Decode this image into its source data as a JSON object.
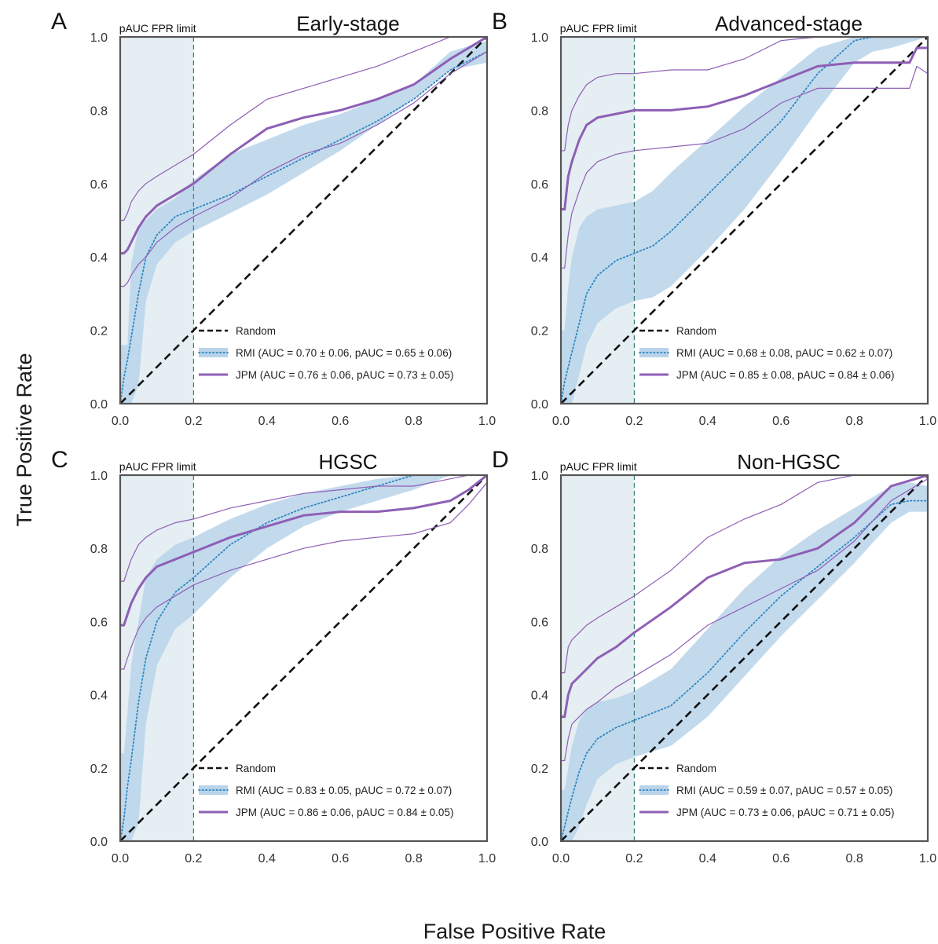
{
  "figure": {
    "xlabel": "False Positive Rate",
    "ylabel": "True Positive Rate",
    "pauc_label": "pAUC FPR limit",
    "legend_random": "Random",
    "colors": {
      "jpm": "#8e5fb5",
      "rmi": "#2e86c1",
      "rmi_band": "#b9d3ea",
      "pauc_region": "#e5eef2",
      "pauc_line": "#3f7f73",
      "random": "#111111",
      "frame": "#555555"
    }
  },
  "chart_data": [
    {
      "type": "line",
      "panel": "A",
      "title": "Early-stage",
      "xlim": [
        0,
        1
      ],
      "ylim": [
        0,
        1
      ],
      "xticks": [
        "0.0",
        "0.2",
        "0.4",
        "0.6",
        "0.8",
        "1.0"
      ],
      "yticks": [
        "0.0",
        "0.2",
        "0.4",
        "0.6",
        "0.8",
        "1.0"
      ],
      "pauc_fpr_limit": 0.2,
      "legend": {
        "rmi": "RMI (AUC = 0.70 ± 0.06, pAUC = 0.65 ± 0.06)",
        "jpm": "JPM (AUC = 0.76 ± 0.06, pAUC = 0.73 ± 0.05)"
      },
      "rmi": {
        "x": [
          0,
          0.01,
          0.02,
          0.03,
          0.05,
          0.07,
          0.1,
          0.15,
          0.2,
          0.3,
          0.4,
          0.5,
          0.6,
          0.7,
          0.8,
          0.9,
          1.0
        ],
        "y": [
          0.0,
          0.07,
          0.12,
          0.18,
          0.3,
          0.4,
          0.46,
          0.51,
          0.53,
          0.57,
          0.62,
          0.67,
          0.72,
          0.77,
          0.83,
          0.91,
          0.96
        ],
        "lower": [
          0.0,
          0.0,
          0.0,
          0.0,
          0.05,
          0.28,
          0.38,
          0.44,
          0.47,
          0.52,
          0.57,
          0.63,
          0.69,
          0.76,
          0.83,
          0.91,
          0.93
        ],
        "upper": [
          0.16,
          0.16,
          0.16,
          0.38,
          0.48,
          0.5,
          0.53,
          0.56,
          0.61,
          0.68,
          0.72,
          0.76,
          0.79,
          0.83,
          0.87,
          0.96,
          0.99
        ]
      },
      "jpm": {
        "x": [
          0,
          0.01,
          0.02,
          0.03,
          0.05,
          0.07,
          0.1,
          0.15,
          0.2,
          0.3,
          0.4,
          0.5,
          0.6,
          0.7,
          0.8,
          0.9,
          1.0
        ],
        "y": [
          0.41,
          0.41,
          0.42,
          0.44,
          0.48,
          0.51,
          0.54,
          0.57,
          0.6,
          0.68,
          0.75,
          0.78,
          0.8,
          0.83,
          0.87,
          0.94,
          1.0
        ],
        "lower": [
          0.32,
          0.32,
          0.33,
          0.35,
          0.38,
          0.4,
          0.44,
          0.48,
          0.51,
          0.56,
          0.63,
          0.68,
          0.71,
          0.76,
          0.82,
          0.9,
          0.96
        ],
        "upper": [
          0.5,
          0.5,
          0.52,
          0.55,
          0.58,
          0.6,
          0.62,
          0.65,
          0.68,
          0.76,
          0.83,
          0.86,
          0.89,
          0.92,
          0.96,
          1.0,
          1.0
        ]
      }
    },
    {
      "type": "line",
      "panel": "B",
      "title": "Advanced-stage",
      "xlim": [
        0,
        1
      ],
      "ylim": [
        0,
        1
      ],
      "xticks": [
        "0.0",
        "0.2",
        "0.4",
        "0.6",
        "0.8",
        "1.0"
      ],
      "yticks": [
        "0.0",
        "0.2",
        "0.4",
        "0.6",
        "0.8",
        "1.0"
      ],
      "pauc_fpr_limit": 0.2,
      "legend": {
        "rmi": "RMI (AUC = 0.68 ± 0.08, pAUC = 0.62 ± 0.07)",
        "jpm": "JPM (AUC = 0.85 ± 0.08, pAUC = 0.84 ± 0.06)"
      },
      "rmi": {
        "x": [
          0,
          0.01,
          0.02,
          0.03,
          0.05,
          0.07,
          0.1,
          0.15,
          0.2,
          0.25,
          0.3,
          0.4,
          0.5,
          0.6,
          0.7,
          0.8,
          0.85,
          0.9,
          1.0
        ],
        "y": [
          0.0,
          0.06,
          0.1,
          0.14,
          0.22,
          0.3,
          0.35,
          0.39,
          0.41,
          0.43,
          0.47,
          0.57,
          0.67,
          0.77,
          0.9,
          0.99,
          1.0,
          1.0,
          1.0
        ],
        "lower": [
          0.0,
          0.0,
          0.0,
          0.0,
          0.08,
          0.16,
          0.22,
          0.26,
          0.28,
          0.29,
          0.32,
          0.42,
          0.53,
          0.66,
          0.8,
          0.93,
          0.96,
          0.97,
          1.0
        ],
        "upper": [
          0.2,
          0.2,
          0.32,
          0.4,
          0.48,
          0.51,
          0.53,
          0.54,
          0.55,
          0.58,
          0.63,
          0.72,
          0.81,
          0.89,
          0.97,
          1.0,
          1.0,
          1.0,
          1.0
        ]
      },
      "jpm": {
        "x": [
          0,
          0.01,
          0.02,
          0.03,
          0.05,
          0.07,
          0.1,
          0.15,
          0.2,
          0.3,
          0.4,
          0.5,
          0.6,
          0.7,
          0.8,
          0.9,
          0.95,
          0.97,
          1.0
        ],
        "y": [
          0.53,
          0.53,
          0.62,
          0.66,
          0.72,
          0.76,
          0.78,
          0.79,
          0.8,
          0.8,
          0.81,
          0.84,
          0.88,
          0.92,
          0.93,
          0.93,
          0.93,
          0.97,
          0.97
        ],
        "lower": [
          0.37,
          0.37,
          0.46,
          0.52,
          0.58,
          0.63,
          0.66,
          0.68,
          0.69,
          0.7,
          0.71,
          0.75,
          0.82,
          0.86,
          0.86,
          0.86,
          0.86,
          0.92,
          0.9
        ],
        "upper": [
          0.69,
          0.69,
          0.76,
          0.8,
          0.84,
          0.87,
          0.89,
          0.9,
          0.9,
          0.91,
          0.91,
          0.94,
          0.99,
          1.0,
          1.0,
          1.0,
          1.0,
          1.0,
          1.0
        ]
      }
    },
    {
      "type": "line",
      "panel": "C",
      "title": "HGSC",
      "xlim": [
        0,
        1
      ],
      "ylim": [
        0,
        1
      ],
      "xticks": [
        "0.0",
        "0.2",
        "0.4",
        "0.6",
        "0.8",
        "1.0"
      ],
      "yticks": [
        "0.0",
        "0.2",
        "0.4",
        "0.6",
        "0.8",
        "1.0"
      ],
      "pauc_fpr_limit": 0.2,
      "legend": {
        "rmi": "RMI (AUC = 0.83 ± 0.05, pAUC = 0.72 ± 0.07)",
        "jpm": "JPM (AUC = 0.86 ± 0.06, pAUC = 0.84 ± 0.05)"
      },
      "rmi": {
        "x": [
          0,
          0.01,
          0.02,
          0.03,
          0.05,
          0.07,
          0.1,
          0.15,
          0.2,
          0.3,
          0.4,
          0.5,
          0.6,
          0.7,
          0.8,
          0.85,
          0.9,
          1.0
        ],
        "y": [
          0.0,
          0.06,
          0.15,
          0.22,
          0.38,
          0.5,
          0.6,
          0.68,
          0.72,
          0.81,
          0.87,
          0.91,
          0.94,
          0.97,
          1.0,
          1.0,
          1.0,
          1.0
        ],
        "lower": [
          0.0,
          0.0,
          0.0,
          0.0,
          0.05,
          0.32,
          0.48,
          0.58,
          0.62,
          0.72,
          0.8,
          0.86,
          0.9,
          0.93,
          0.96,
          0.98,
          1.0,
          1.0
        ],
        "upper": [
          0.24,
          0.24,
          0.35,
          0.48,
          0.6,
          0.72,
          0.77,
          0.81,
          0.83,
          0.88,
          0.92,
          0.95,
          0.97,
          0.99,
          1.0,
          1.0,
          1.0,
          1.0
        ]
      },
      "jpm": {
        "x": [
          0,
          0.01,
          0.02,
          0.03,
          0.05,
          0.07,
          0.1,
          0.15,
          0.2,
          0.3,
          0.4,
          0.5,
          0.6,
          0.7,
          0.8,
          0.9,
          0.95,
          1.0
        ],
        "y": [
          0.59,
          0.59,
          0.62,
          0.65,
          0.69,
          0.72,
          0.75,
          0.77,
          0.79,
          0.83,
          0.86,
          0.89,
          0.9,
          0.9,
          0.91,
          0.93,
          0.96,
          1.0
        ],
        "lower": [
          0.47,
          0.47,
          0.5,
          0.53,
          0.58,
          0.61,
          0.64,
          0.67,
          0.7,
          0.74,
          0.77,
          0.8,
          0.82,
          0.83,
          0.84,
          0.87,
          0.92,
          0.98
        ],
        "upper": [
          0.71,
          0.71,
          0.74,
          0.77,
          0.81,
          0.83,
          0.85,
          0.87,
          0.88,
          0.91,
          0.93,
          0.95,
          0.96,
          0.97,
          0.97,
          0.99,
          1.0,
          1.0
        ]
      }
    },
    {
      "type": "line",
      "panel": "D",
      "title": "Non-HGSC",
      "xlim": [
        0,
        1
      ],
      "ylim": [
        0,
        1
      ],
      "xticks": [
        "0.0",
        "0.2",
        "0.4",
        "0.6",
        "0.8",
        "1.0"
      ],
      "yticks": [
        "0.0",
        "0.2",
        "0.4",
        "0.6",
        "0.8",
        "1.0"
      ],
      "pauc_fpr_limit": 0.2,
      "legend": {
        "rmi": "RMI (AUC = 0.59 ± 0.07, pAUC = 0.57 ± 0.05)",
        "jpm": "JPM (AUC = 0.73 ± 0.06, pAUC = 0.71 ± 0.05)"
      },
      "rmi": {
        "x": [
          0,
          0.01,
          0.02,
          0.03,
          0.05,
          0.07,
          0.1,
          0.15,
          0.2,
          0.3,
          0.4,
          0.5,
          0.6,
          0.7,
          0.8,
          0.9,
          0.95,
          1.0
        ],
        "y": [
          0.0,
          0.04,
          0.08,
          0.12,
          0.19,
          0.24,
          0.28,
          0.31,
          0.33,
          0.37,
          0.46,
          0.57,
          0.67,
          0.75,
          0.83,
          0.92,
          0.93,
          0.93
        ],
        "lower": [
          0.0,
          0.0,
          0.0,
          0.0,
          0.04,
          0.1,
          0.17,
          0.21,
          0.23,
          0.26,
          0.34,
          0.45,
          0.56,
          0.66,
          0.76,
          0.87,
          0.9,
          0.9
        ],
        "upper": [
          0.14,
          0.14,
          0.2,
          0.26,
          0.33,
          0.36,
          0.38,
          0.39,
          0.41,
          0.47,
          0.58,
          0.69,
          0.78,
          0.85,
          0.91,
          0.97,
          0.98,
          0.97
        ]
      },
      "jpm": {
        "x": [
          0,
          0.01,
          0.02,
          0.03,
          0.05,
          0.07,
          0.1,
          0.15,
          0.2,
          0.3,
          0.4,
          0.5,
          0.6,
          0.7,
          0.8,
          0.9,
          1.0
        ],
        "y": [
          0.34,
          0.34,
          0.4,
          0.43,
          0.45,
          0.47,
          0.5,
          0.53,
          0.57,
          0.64,
          0.72,
          0.76,
          0.77,
          0.8,
          0.87,
          0.97,
          1.0
        ],
        "lower": [
          0.22,
          0.22,
          0.28,
          0.32,
          0.34,
          0.36,
          0.38,
          0.42,
          0.45,
          0.51,
          0.59,
          0.64,
          0.69,
          0.74,
          0.82,
          0.93,
          0.99
        ],
        "upper": [
          0.46,
          0.46,
          0.53,
          0.55,
          0.57,
          0.59,
          0.61,
          0.64,
          0.67,
          0.74,
          0.83,
          0.88,
          0.92,
          0.98,
          1.0,
          1.0,
          1.0
        ]
      }
    }
  ]
}
